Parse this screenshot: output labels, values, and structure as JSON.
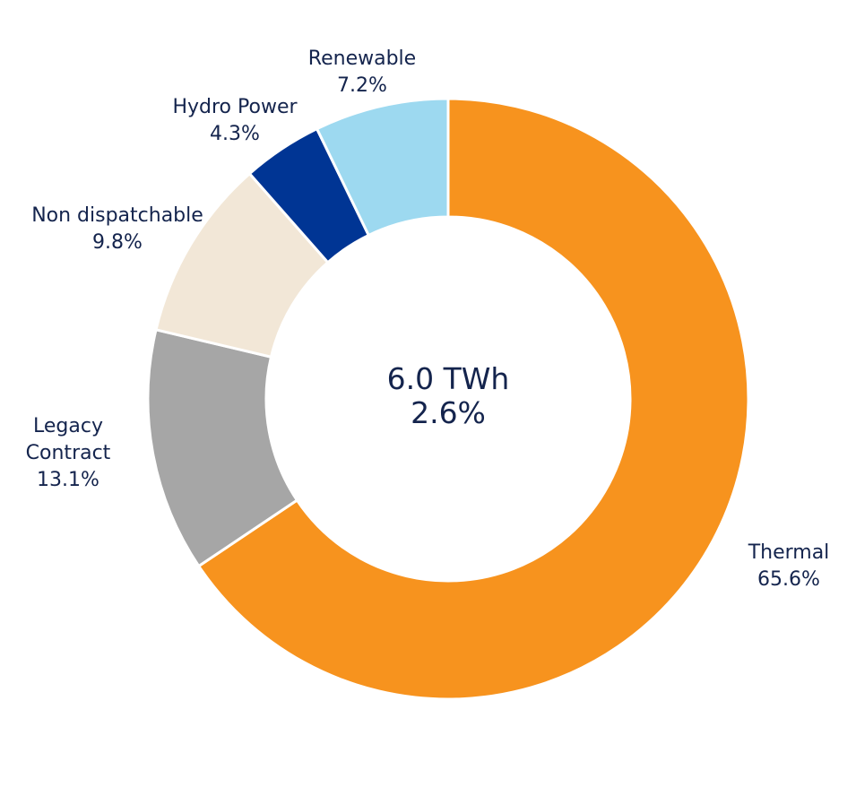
{
  "chart_data": {
    "type": "pie",
    "style": "donut",
    "center_text": [
      "6.0 TWh",
      "2.6%"
    ],
    "slices": [
      {
        "label": [
          "Thermal"
        ],
        "value": 65.6,
        "display": "65.6%",
        "color": "#f7931e"
      },
      {
        "label": [
          "Legacy",
          "Contract"
        ],
        "value": 13.1,
        "display": "13.1%",
        "color": "#a6a6a6"
      },
      {
        "label": [
          "Non dispatchable"
        ],
        "value": 9.8,
        "display": "9.8%",
        "color": "#f2e7d7"
      },
      {
        "label": [
          "Hydro Power"
        ],
        "value": 4.3,
        "display": "4.3%",
        "color": "#003594"
      },
      {
        "label": [
          "Renewable"
        ],
        "value": 7.2,
        "display": "7.2%",
        "color": "#9dd9f0"
      }
    ],
    "start_angle_deg": 0,
    "direction": "clockwise"
  }
}
